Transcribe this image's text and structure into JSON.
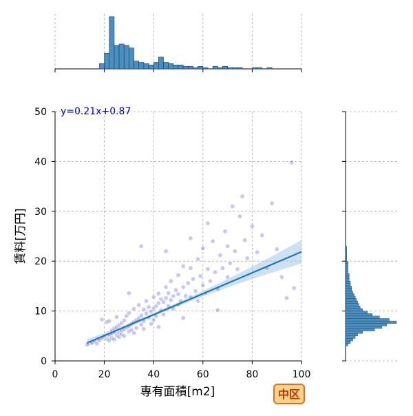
{
  "chart_data": {
    "type": "scatter",
    "xlabel": "専有面積[m2]",
    "ylabel": "賃料[万円]",
    "xlim": [
      0,
      100
    ],
    "ylim": [
      0,
      50
    ],
    "x_ticks": [
      0,
      20,
      40,
      60,
      80,
      100
    ],
    "y_ticks": [
      0,
      10,
      20,
      30,
      40,
      50
    ],
    "grid": true,
    "annotation": "y=0.21x+0.87",
    "badge": "中区",
    "regression": {
      "slope": 0.21,
      "intercept": 0.87,
      "x_range": [
        13,
        100
      ]
    },
    "series": [
      {
        "values": [
          [
            13,
            3.3
          ],
          [
            15,
            3.6
          ],
          [
            16,
            4.0
          ],
          [
            17,
            3.5
          ],
          [
            18,
            4.2
          ],
          [
            19,
            4.6
          ],
          [
            19,
            8.3
          ],
          [
            20,
            5.0
          ],
          [
            21,
            4.4
          ],
          [
            21,
            7.8
          ],
          [
            22,
            5.2
          ],
          [
            22,
            4.1
          ],
          [
            22,
            8.0
          ],
          [
            23,
            5.5
          ],
          [
            23,
            6.1
          ],
          [
            23,
            4.6
          ],
          [
            24,
            5.8
          ],
          [
            24,
            6.5
          ],
          [
            24,
            4.3
          ],
          [
            25,
            5.1
          ],
          [
            25,
            6.8
          ],
          [
            25,
            8.8
          ],
          [
            26,
            5.6
          ],
          [
            26,
            7.2
          ],
          [
            26,
            4.8
          ],
          [
            27,
            6.0
          ],
          [
            27,
            7.6
          ],
          [
            27,
            5.3
          ],
          [
            28,
            6.3
          ],
          [
            28,
            8.1
          ],
          [
            28,
            5.0
          ],
          [
            29,
            6.7
          ],
          [
            29,
            9.0
          ],
          [
            30,
            7.0
          ],
          [
            30,
            5.9
          ],
          [
            30,
            9.6
          ],
          [
            31,
            7.4
          ],
          [
            31,
            6.2
          ],
          [
            32,
            7.8
          ],
          [
            32,
            10.4
          ],
          [
            32,
            5.6
          ],
          [
            33,
            8.2
          ],
          [
            33,
            6.6
          ],
          [
            34,
            8.6
          ],
          [
            34,
            11.2
          ],
          [
            35,
            7.3
          ],
          [
            35,
            9.1
          ],
          [
            36,
            8.0
          ],
          [
            36,
            10.3
          ],
          [
            36,
            6.4
          ],
          [
            37,
            9.5
          ],
          [
            37,
            12.0
          ],
          [
            38,
            8.7
          ],
          [
            38,
            10.8
          ],
          [
            39,
            9.9
          ],
          [
            39,
            7.4
          ],
          [
            40,
            10.5
          ],
          [
            40,
            12.8
          ],
          [
            40,
            8.2
          ],
          [
            41,
            11.0
          ],
          [
            41,
            9.0
          ],
          [
            42,
            11.6
          ],
          [
            42,
            13.5
          ],
          [
            43,
            10.2
          ],
          [
            43,
            12.4
          ],
          [
            44,
            11.8
          ],
          [
            44,
            9.3
          ],
          [
            45,
            12.6
          ],
          [
            45,
            14.8
          ],
          [
            46,
            11.0
          ],
          [
            46,
            13.6
          ],
          [
            47,
            12.2
          ],
          [
            47,
            16.0
          ],
          [
            48,
            13.0
          ],
          [
            48,
            10.4
          ],
          [
            49,
            14.2
          ],
          [
            50,
            13.4
          ],
          [
            50,
            17.2
          ],
          [
            50,
            11.3
          ],
          [
            51,
            12.0
          ],
          [
            52,
            14.8
          ],
          [
            52,
            19.0
          ],
          [
            53,
            13.0
          ],
          [
            54,
            15.6
          ],
          [
            55,
            12.8
          ],
          [
            55,
            18.6
          ],
          [
            56,
            16.4
          ],
          [
            57,
            14.0
          ],
          [
            58,
            20.4
          ],
          [
            58,
            12.0
          ],
          [
            59,
            17.0
          ],
          [
            60,
            15.2
          ],
          [
            60,
            22.6
          ],
          [
            61,
            13.6
          ],
          [
            62,
            18.4
          ],
          [
            63,
            16.0
          ],
          [
            64,
            24.0
          ],
          [
            65,
            17.8
          ],
          [
            66,
            14.4
          ],
          [
            67,
            21.2
          ],
          [
            68,
            18.6
          ],
          [
            69,
            26.0
          ],
          [
            70,
            16.8
          ],
          [
            70,
            23.0
          ],
          [
            71,
            19.6
          ],
          [
            72,
            31.0
          ],
          [
            73,
            22.0
          ],
          [
            74,
            18.4
          ],
          [
            75,
            29.0
          ],
          [
            76,
            33.0
          ],
          [
            77,
            24.2
          ],
          [
            78,
            20.6
          ],
          [
            80,
            27.0
          ],
          [
            82,
            21.8
          ],
          [
            84,
            25.2
          ],
          [
            86,
            18.6
          ],
          [
            88,
            31.6
          ],
          [
            90,
            22.4
          ],
          [
            92,
            16.8
          ],
          [
            94,
            12.6
          ],
          [
            96,
            39.8
          ],
          [
            97,
            14.6
          ],
          [
            35,
            23.0
          ],
          [
            45,
            22.0
          ],
          [
            55,
            24.6
          ],
          [
            62,
            27.6
          ],
          [
            30,
            13.6
          ],
          [
            42,
            6.8
          ],
          [
            52,
            8.6
          ],
          [
            66,
            10.2
          ]
        ]
      }
    ],
    "hist_x": {
      "bin_width": 2,
      "bins_start": 18,
      "counts": [
        4,
        12,
        40,
        18,
        19,
        18,
        16,
        6,
        5,
        4,
        3,
        5,
        9,
        5,
        4,
        3,
        3,
        2,
        2,
        1,
        2,
        1,
        0,
        2,
        1,
        2,
        1,
        1,
        1,
        0,
        0,
        1,
        1,
        0,
        1
      ]
    },
    "hist_y": {
      "bin_width": 0.5,
      "bins_start": 3.0,
      "counts": [
        2,
        4,
        6,
        8,
        10,
        14,
        24,
        30,
        34,
        42,
        36,
        28,
        22,
        18,
        14,
        12,
        11,
        10,
        9,
        8,
        7,
        6,
        5,
        5,
        4,
        4,
        3,
        3,
        3,
        2,
        2,
        2,
        2,
        2,
        1,
        1,
        1,
        1,
        1,
        1
      ]
    },
    "colors": {
      "point": "#3a3acc",
      "line": "#1f77b4",
      "band": "#9ec3e6",
      "hist": "#4a8fc0",
      "grid": "#a8a8a8",
      "badge_bg": "#ffd18a",
      "badge_border": "#e07020",
      "badge_text": "#b33a00"
    }
  }
}
